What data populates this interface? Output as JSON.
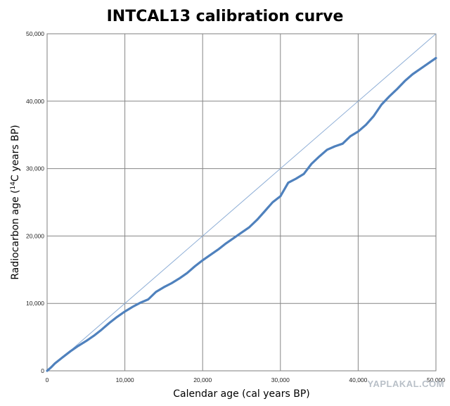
{
  "chart_data": {
    "type": "line",
    "title": "INTCAL13 calibration curve",
    "xlabel": "Calendar age (cal years BP)",
    "ylabel_prefix": "Radiocarbon age (",
    "ylabel_sup": "14",
    "ylabel_suffix": "C years BP)",
    "xlim": [
      0,
      50000
    ],
    "ylim": [
      0,
      50000
    ],
    "x_ticks": [
      0,
      10000,
      20000,
      30000,
      40000,
      50000
    ],
    "y_ticks": [
      0,
      10000,
      20000,
      30000,
      40000,
      50000
    ],
    "x_tick_labels": [
      "0",
      "10,000",
      "20,000",
      "30,000",
      "40,000",
      "50,000"
    ],
    "y_tick_labels": [
      "0",
      "10,000",
      "20,000",
      "30,000",
      "40,000",
      "50,000"
    ],
    "grid": true,
    "legend": "none",
    "series": [
      {
        "role": "reference-1:1",
        "color": "#8eaed6",
        "x": [
          0,
          50000
        ],
        "y": [
          0,
          50000
        ]
      },
      {
        "role": "calibration-curve",
        "color": "#4f81bd",
        "x": [
          0,
          500,
          1000,
          2000,
          3000,
          4000,
          5000,
          6000,
          7000,
          8000,
          9000,
          10000,
          11000,
          12000,
          13000,
          14000,
          15000,
          16000,
          17000,
          18000,
          19000,
          20000,
          21000,
          22000,
          23000,
          24000,
          25000,
          26000,
          27000,
          28000,
          29000,
          30000,
          31000,
          32000,
          33000,
          34000,
          35000,
          36000,
          37000,
          38000,
          39000,
          40000,
          41000,
          42000,
          43000,
          44000,
          45000,
          46000,
          47000,
          48000,
          49000,
          50000
        ],
        "y": [
          0,
          500,
          1100,
          2000,
          2900,
          3700,
          4400,
          5200,
          6100,
          7100,
          8000,
          8800,
          9500,
          10100,
          10600,
          11700,
          12400,
          13000,
          13700,
          14500,
          15500,
          16400,
          17200,
          18000,
          18900,
          19700,
          20500,
          21300,
          22400,
          23700,
          25000,
          25900,
          27900,
          28500,
          29200,
          30700,
          31800,
          32800,
          33300,
          33700,
          34800,
          35500,
          36500,
          37800,
          39500,
          40700,
          41800,
          43000,
          44000,
          44800,
          45600,
          46400
        ]
      }
    ],
    "watermark": "YAPLAKAL.COM"
  }
}
